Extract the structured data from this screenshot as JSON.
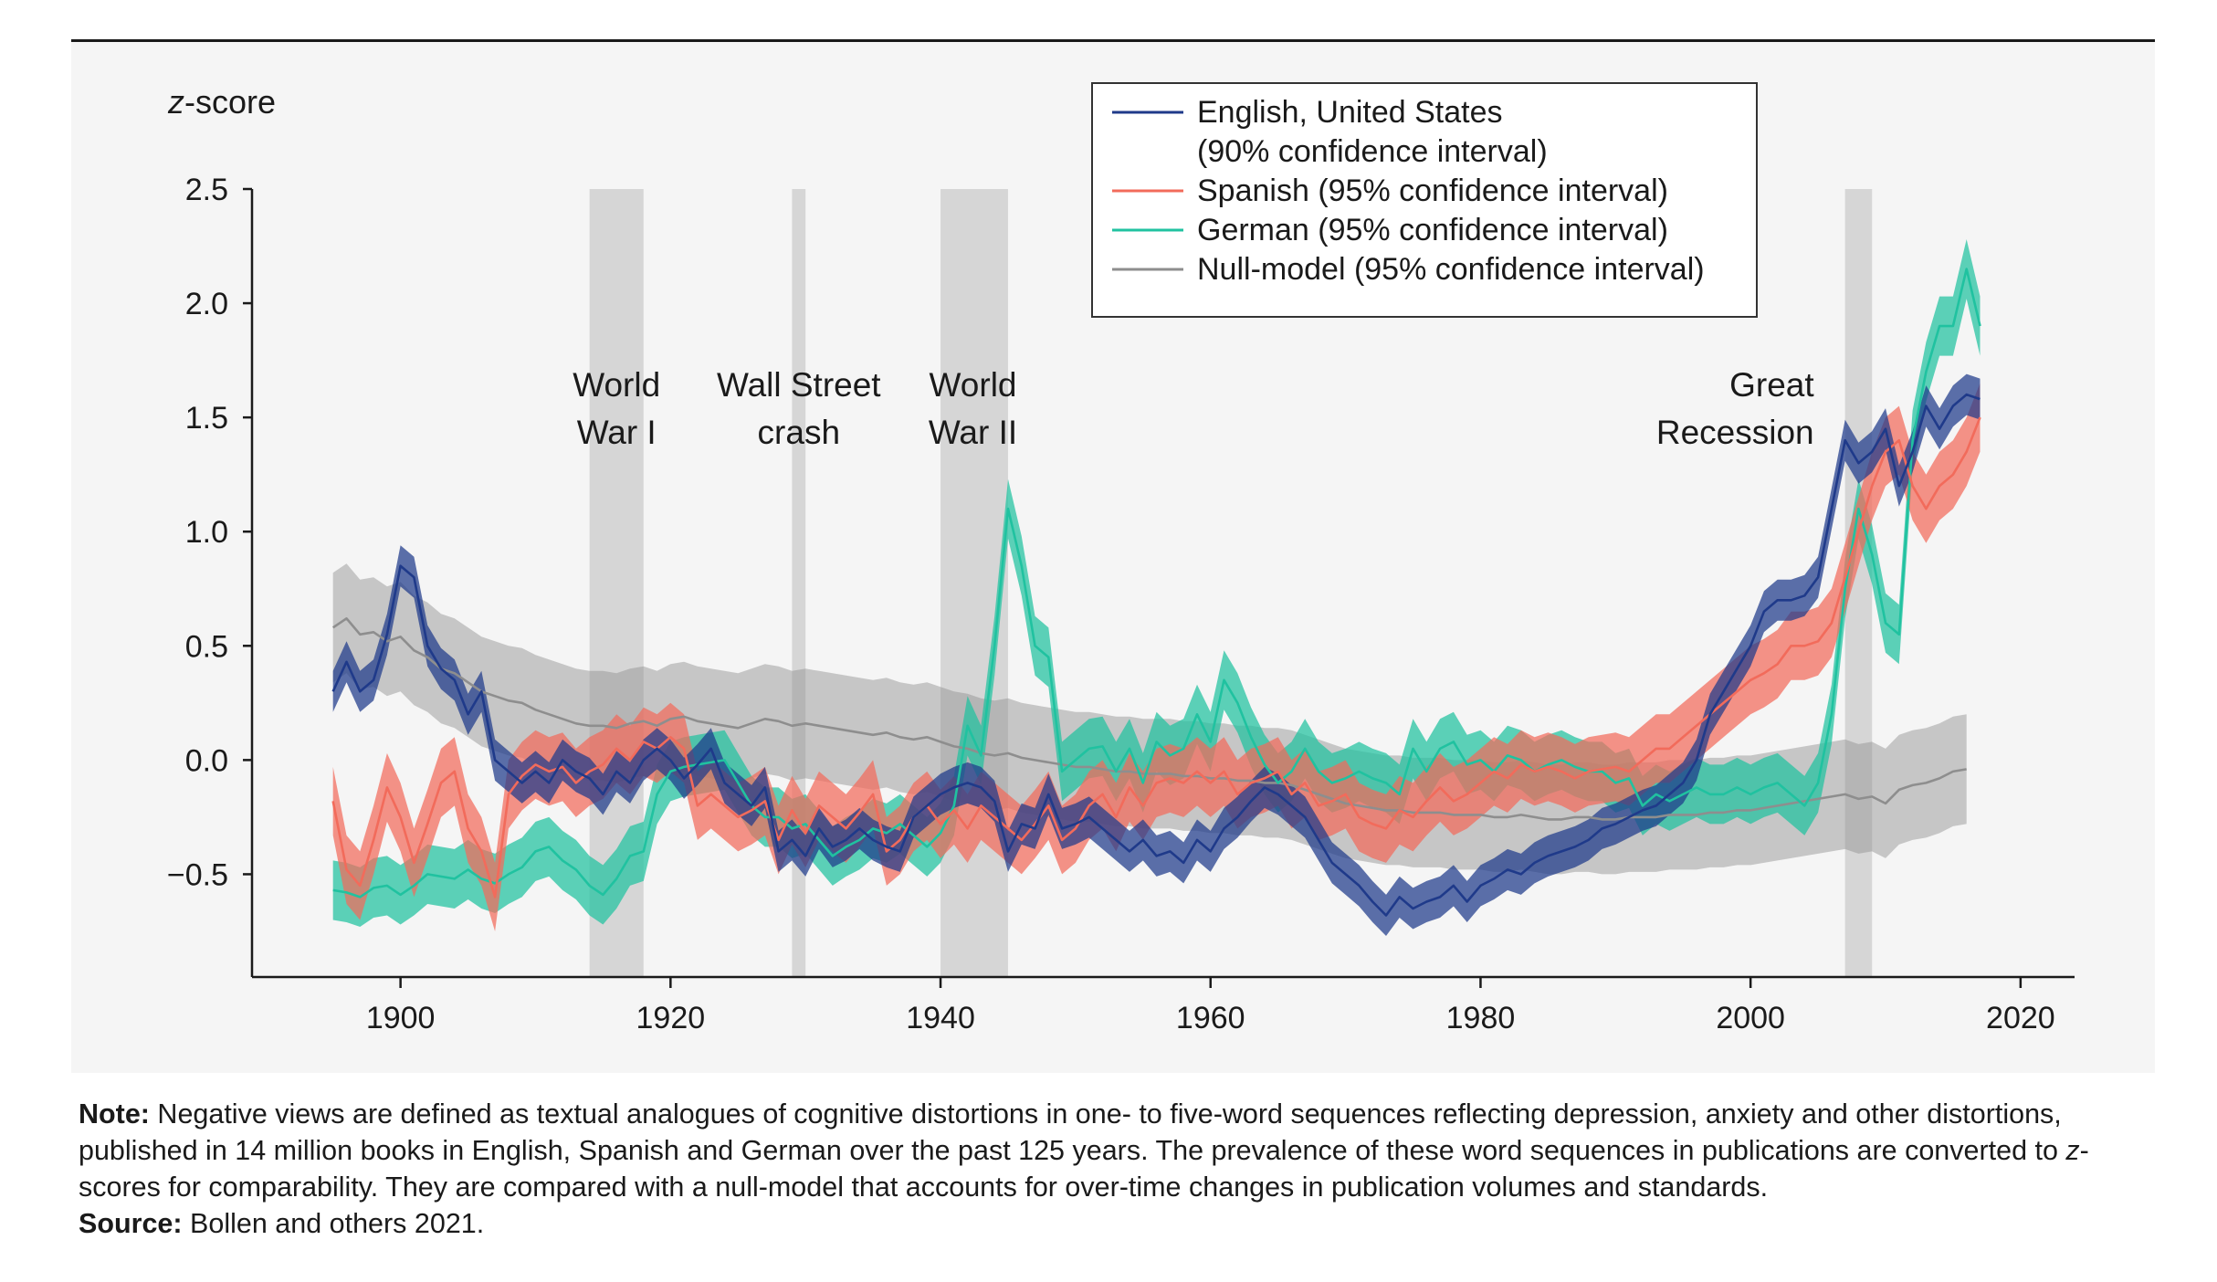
{
  "colors": {
    "english": "#1f3a8a",
    "spanish": "#f26b5b",
    "german": "#20c2a0",
    "null_model": "#8e8e8e",
    "event_band": "#d6d6d6"
  },
  "chart_data": {
    "type": "line",
    "ylabel": "z-score",
    "xlim": [
      1889,
      2024
    ],
    "ylim": [
      -0.95,
      2.5
    ],
    "xticks": [
      1900,
      1920,
      1940,
      1960,
      1980,
      2000,
      2020
    ],
    "yticks": [
      {
        "value": 2.5,
        "label": "2.5"
      },
      {
        "value": 2.0,
        "label": "2.0"
      },
      {
        "value": 1.5,
        "label": "1.5"
      },
      {
        "value": 1.0,
        "label": "1.0"
      },
      {
        "value": 0.5,
        "label": "0.5"
      },
      {
        "value": 0.0,
        "label": "0.0"
      },
      {
        "value": -0.5,
        "label": "−0.5"
      }
    ],
    "events": [
      {
        "start": 1914,
        "end": 1918,
        "label_lines": [
          "World",
          "War I"
        ],
        "label_x": 1916
      },
      {
        "start": 1929,
        "end": 1930,
        "label_lines": [
          "Wall Street",
          "crash"
        ],
        "label_x": 1929.5
      },
      {
        "start": 1940,
        "end": 1945,
        "label_lines": [
          "World",
          "War II"
        ],
        "label_x": 1942.4
      },
      {
        "start": 2007,
        "end": 2009,
        "label_lines": [
          "Great",
          "Recession"
        ],
        "label_x": 2004.7,
        "anchor": "end"
      }
    ],
    "legend": [
      {
        "series": "english",
        "lines": [
          "English, United States",
          "(90% confidence interval)"
        ]
      },
      {
        "series": "spanish",
        "lines": [
          "Spanish (95% confidence interval)"
        ]
      },
      {
        "series": "german",
        "lines": [
          "German (95% confidence interval)"
        ]
      },
      {
        "series": "null_model",
        "lines": [
          "Null-model (95% confidence interval)"
        ]
      }
    ],
    "series": [
      {
        "name": "null_model",
        "x_start": 1895,
        "band": 0.24,
        "values": [
          0.58,
          0.62,
          0.55,
          0.56,
          0.52,
          0.54,
          0.48,
          0.45,
          0.4,
          0.38,
          0.34,
          0.3,
          0.28,
          0.26,
          0.25,
          0.22,
          0.2,
          0.18,
          0.16,
          0.15,
          0.15,
          0.14,
          0.16,
          0.17,
          0.15,
          0.18,
          0.19,
          0.17,
          0.16,
          0.15,
          0.14,
          0.16,
          0.18,
          0.17,
          0.15,
          0.16,
          0.15,
          0.14,
          0.13,
          0.12,
          0.11,
          0.12,
          0.1,
          0.09,
          0.1,
          0.08,
          0.06,
          0.05,
          0.03,
          0.02,
          0.03,
          0.01,
          0.0,
          -0.01,
          -0.02,
          -0.03,
          -0.03,
          -0.04,
          -0.05,
          -0.05,
          -0.06,
          -0.06,
          -0.06,
          -0.07,
          -0.07,
          -0.08,
          -0.08,
          -0.09,
          -0.09,
          -0.1,
          -0.1,
          -0.11,
          -0.13,
          -0.15,
          -0.17,
          -0.19,
          -0.2,
          -0.21,
          -0.22,
          -0.22,
          -0.23,
          -0.23,
          -0.23,
          -0.24,
          -0.24,
          -0.24,
          -0.25,
          -0.25,
          -0.24,
          -0.25,
          -0.26,
          -0.26,
          -0.25,
          -0.25,
          -0.26,
          -0.26,
          -0.25,
          -0.25,
          -0.25,
          -0.24,
          -0.24,
          -0.24,
          -0.23,
          -0.23,
          -0.22,
          -0.22,
          -0.21,
          -0.2,
          -0.19,
          -0.18,
          -0.17,
          -0.16,
          -0.15,
          -0.17,
          -0.16,
          -0.19,
          -0.13,
          -0.11,
          -0.1,
          -0.08,
          -0.05,
          -0.04
        ]
      },
      {
        "name": "german",
        "x_start": 1895,
        "band": 0.13,
        "values": [
          -0.57,
          -0.58,
          -0.6,
          -0.56,
          -0.55,
          -0.59,
          -0.55,
          -0.5,
          -0.51,
          -0.52,
          -0.48,
          -0.52,
          -0.54,
          -0.5,
          -0.47,
          -0.4,
          -0.38,
          -0.44,
          -0.48,
          -0.55,
          -0.59,
          -0.52,
          -0.42,
          -0.4,
          -0.15,
          -0.05,
          -0.03,
          -0.02,
          -0.01,
          0.0,
          -0.1,
          -0.2,
          -0.25,
          -0.25,
          -0.3,
          -0.28,
          -0.35,
          -0.42,
          -0.38,
          -0.35,
          -0.3,
          -0.32,
          -0.28,
          -0.33,
          -0.38,
          -0.32,
          -0.2,
          0.15,
          0.02,
          0.5,
          1.1,
          0.85,
          0.5,
          0.45,
          -0.05,
          0.0,
          0.05,
          0.06,
          -0.05,
          0.05,
          -0.1,
          0.08,
          0.02,
          0.05,
          0.2,
          0.08,
          0.35,
          0.25,
          0.1,
          -0.02,
          -0.1,
          -0.05,
          0.05,
          -0.05,
          -0.1,
          -0.08,
          -0.05,
          -0.08,
          -0.1,
          -0.15,
          0.05,
          -0.05,
          0.05,
          0.08,
          -0.02,
          0.0,
          -0.05,
          0.02,
          0.0,
          -0.05,
          -0.02,
          0.0,
          -0.03,
          -0.05,
          -0.05,
          -0.1,
          -0.08,
          -0.2,
          -0.15,
          -0.18,
          -0.15,
          -0.12,
          -0.15,
          -0.15,
          -0.12,
          -0.15,
          -0.12,
          -0.1,
          -0.15,
          -0.2,
          -0.1,
          0.2,
          0.75,
          1.1,
          0.9,
          0.6,
          0.55,
          1.4,
          1.7,
          1.9,
          1.9,
          2.15,
          1.9
        ]
      },
      {
        "name": "spanish",
        "x_start": 1895,
        "band": 0.15,
        "values": [
          -0.18,
          -0.48,
          -0.55,
          -0.35,
          -0.12,
          -0.25,
          -0.45,
          -0.28,
          -0.1,
          -0.05,
          -0.3,
          -0.4,
          -0.6,
          -0.15,
          -0.07,
          -0.02,
          -0.05,
          -0.03,
          -0.1,
          -0.05,
          -0.02,
          0.05,
          0.0,
          0.08,
          0.05,
          0.1,
          0.05,
          -0.2,
          -0.15,
          -0.2,
          -0.25,
          -0.22,
          -0.18,
          -0.35,
          -0.22,
          -0.32,
          -0.2,
          -0.25,
          -0.3,
          -0.23,
          -0.15,
          -0.4,
          -0.35,
          -0.25,
          -0.2,
          -0.28,
          -0.22,
          -0.3,
          -0.2,
          -0.25,
          -0.3,
          -0.35,
          -0.28,
          -0.2,
          -0.35,
          -0.3,
          -0.2,
          -0.15,
          -0.25,
          -0.12,
          -0.2,
          -0.1,
          -0.08,
          -0.1,
          -0.05,
          -0.1,
          -0.05,
          -0.15,
          -0.1,
          -0.08,
          -0.05,
          -0.15,
          -0.1,
          -0.2,
          -0.18,
          -0.15,
          -0.25,
          -0.28,
          -0.3,
          -0.22,
          -0.25,
          -0.18,
          -0.12,
          -0.18,
          -0.15,
          -0.1,
          -0.05,
          -0.08,
          -0.02,
          -0.05,
          -0.03,
          -0.05,
          -0.08,
          -0.05,
          -0.04,
          -0.03,
          -0.05,
          0.0,
          0.05,
          0.05,
          0.1,
          0.15,
          0.2,
          0.25,
          0.3,
          0.35,
          0.38,
          0.42,
          0.5,
          0.5,
          0.52,
          0.6,
          0.8,
          1.0,
          1.2,
          1.35,
          1.4,
          1.2,
          1.1,
          1.2,
          1.25,
          1.35,
          1.5
        ]
      },
      {
        "name": "english",
        "x_start": 1895,
        "band": 0.09,
        "values": [
          0.3,
          0.43,
          0.3,
          0.35,
          0.55,
          0.85,
          0.8,
          0.5,
          0.4,
          0.35,
          0.2,
          0.3,
          0.0,
          -0.05,
          -0.1,
          -0.05,
          -0.1,
          0.0,
          -0.05,
          -0.08,
          -0.15,
          -0.05,
          -0.1,
          0.0,
          0.05,
          0.0,
          -0.08,
          -0.02,
          0.05,
          -0.1,
          -0.15,
          -0.2,
          -0.12,
          -0.4,
          -0.35,
          -0.42,
          -0.3,
          -0.38,
          -0.35,
          -0.3,
          -0.35,
          -0.38,
          -0.4,
          -0.25,
          -0.2,
          -0.15,
          -0.12,
          -0.1,
          -0.12,
          -0.18,
          -0.4,
          -0.28,
          -0.3,
          -0.15,
          -0.3,
          -0.28,
          -0.25,
          -0.3,
          -0.35,
          -0.4,
          -0.35,
          -0.42,
          -0.4,
          -0.45,
          -0.35,
          -0.4,
          -0.3,
          -0.25,
          -0.18,
          -0.12,
          -0.15,
          -0.2,
          -0.25,
          -0.35,
          -0.45,
          -0.5,
          -0.55,
          -0.62,
          -0.68,
          -0.6,
          -0.65,
          -0.62,
          -0.6,
          -0.55,
          -0.62,
          -0.55,
          -0.52,
          -0.48,
          -0.5,
          -0.45,
          -0.42,
          -0.4,
          -0.38,
          -0.35,
          -0.3,
          -0.28,
          -0.25,
          -0.22,
          -0.2,
          -0.15,
          -0.1,
          0.0,
          0.2,
          0.3,
          0.4,
          0.5,
          0.65,
          0.7,
          0.7,
          0.72,
          0.8,
          1.1,
          1.4,
          1.3,
          1.35,
          1.45,
          1.2,
          1.35,
          1.55,
          1.45,
          1.55,
          1.6,
          1.58
        ]
      }
    ]
  },
  "notes": {
    "note_label": "Note:",
    "note_text": " Negative views are defined as textual analogues of cognitive distortions in one- to five-word sequences reflecting depression, anxiety and other distortions, published in 14 million books in English, Spanish and German over the past 125 years. The prevalence of these word sequences in publications are converted to ",
    "note_italic": "z",
    "note_text_end": "-scores for comparability. They are compared with a null-model that accounts for over-time changes in publication volumes and standards.",
    "source_label": "Source:",
    "source_text": " Bollen and others 2021."
  }
}
